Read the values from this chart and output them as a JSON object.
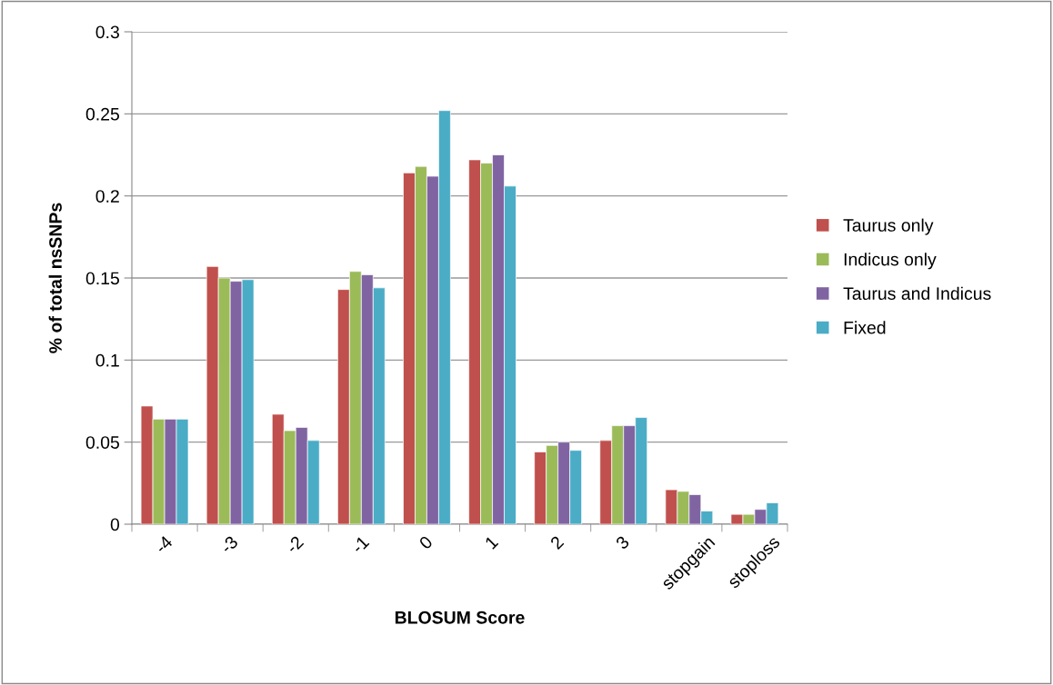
{
  "chart_data": {
    "type": "bar",
    "xlabel": "BLOSUM Score",
    "ylabel": "% of total nsSNPs",
    "categories": [
      "-4",
      "-3",
      "-2",
      "-1",
      "0",
      "1",
      "2",
      "3",
      "stopgain",
      "stoploss"
    ],
    "series": [
      {
        "name": "Taurus only",
        "color": "#c0504d",
        "values": [
          0.072,
          0.157,
          0.067,
          0.143,
          0.214,
          0.222,
          0.044,
          0.051,
          0.021,
          0.006
        ]
      },
      {
        "name": "Indicus only",
        "color": "#9bbb59",
        "values": [
          0.064,
          0.15,
          0.057,
          0.154,
          0.218,
          0.22,
          0.048,
          0.06,
          0.02,
          0.006
        ]
      },
      {
        "name": "Taurus and Indicus",
        "color": "#8064a2",
        "values": [
          0.064,
          0.148,
          0.059,
          0.152,
          0.212,
          0.225,
          0.05,
          0.06,
          0.018,
          0.009
        ]
      },
      {
        "name": "Fixed",
        "color": "#4bacc6",
        "values": [
          0.064,
          0.149,
          0.051,
          0.144,
          0.252,
          0.206,
          0.045,
          0.065,
          0.008,
          0.013
        ]
      }
    ],
    "ylim": [
      0,
      0.3
    ],
    "yticks": [
      {
        "value": 0,
        "label": "0"
      },
      0.05,
      0.1,
      0.15,
      0.2,
      0.25,
      0.3
    ],
    "grid": "y",
    "legend": "right"
  }
}
